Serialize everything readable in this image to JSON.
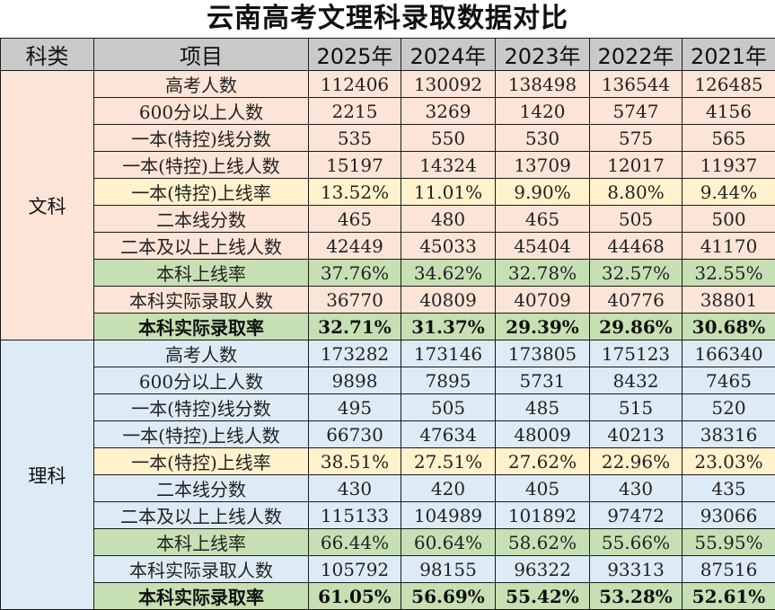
{
  "title": "云南高考文理科录取数据对比",
  "header": {
    "category": "科类",
    "item": "项目",
    "years": [
      "2025年",
      "2024年",
      "2023年",
      "2022年",
      "2021年"
    ]
  },
  "sections": [
    {
      "category": "文科",
      "rows": [
        {
          "item": "高考人数",
          "values": [
            "112406",
            "130092",
            "138498",
            "136544",
            "126485"
          ],
          "style": ""
        },
        {
          "item": "600分以上人数",
          "values": [
            "2215",
            "3269",
            "1420",
            "5747",
            "4156"
          ],
          "style": ""
        },
        {
          "item": "一本(特控)线分数",
          "values": [
            "535",
            "550",
            "530",
            "575",
            "565"
          ],
          "style": ""
        },
        {
          "item": "一本(特控)上线人数",
          "values": [
            "15197",
            "14324",
            "13709",
            "12017",
            "11937"
          ],
          "style": ""
        },
        {
          "item": "一本(特控)上线率",
          "values": [
            "13.52%",
            "11.01%",
            "9.90%",
            "8.80%",
            "9.44%"
          ],
          "style": "yellow"
        },
        {
          "item": "二本线分数",
          "values": [
            "465",
            "480",
            "465",
            "505",
            "500"
          ],
          "style": ""
        },
        {
          "item": "二本及以上上线人数",
          "values": [
            "42449",
            "45033",
            "45404",
            "44468",
            "41170"
          ],
          "style": ""
        },
        {
          "item": "本科上线率",
          "values": [
            "37.76%",
            "34.62%",
            "32.78%",
            "32.57%",
            "32.55%"
          ],
          "style": "green"
        },
        {
          "item": "本科实际录取人数",
          "values": [
            "36770",
            "40809",
            "40709",
            "40776",
            "38801"
          ],
          "style": ""
        },
        {
          "item": "本科实际录取率",
          "values": [
            "32.71%",
            "31.37%",
            "29.39%",
            "29.86%",
            "30.68%"
          ],
          "style": "green-bold"
        }
      ]
    },
    {
      "category": "理科",
      "rows": [
        {
          "item": "高考人数",
          "values": [
            "173282",
            "173146",
            "173805",
            "175123",
            "166340"
          ],
          "style": ""
        },
        {
          "item": "600分以上人数",
          "values": [
            "9898",
            "7895",
            "5731",
            "8432",
            "7465"
          ],
          "style": ""
        },
        {
          "item": "一本(特控)线分数",
          "values": [
            "495",
            "505",
            "485",
            "515",
            "520"
          ],
          "style": ""
        },
        {
          "item": "一本(特控)上线人数",
          "values": [
            "66730",
            "47634",
            "48009",
            "40213",
            "38316"
          ],
          "style": ""
        },
        {
          "item": "一本(特控)上线率",
          "values": [
            "38.51%",
            "27.51%",
            "27.62%",
            "22.96%",
            "23.03%"
          ],
          "style": "yellow"
        },
        {
          "item": "二本线分数",
          "values": [
            "430",
            "420",
            "405",
            "430",
            "435"
          ],
          "style": ""
        },
        {
          "item": "二本及以上上线人数",
          "values": [
            "115133",
            "104989",
            "101892",
            "97472",
            "93066"
          ],
          "style": ""
        },
        {
          "item": "本科上线率",
          "values": [
            "66.44%",
            "60.64%",
            "58.62%",
            "55.66%",
            "55.95%"
          ],
          "style": "green"
        },
        {
          "item": "本科实际录取人数",
          "values": [
            "105792",
            "98155",
            "96322",
            "93313",
            "87516"
          ],
          "style": ""
        },
        {
          "item": "本科实际录取率",
          "values": [
            "61.05%",
            "56.69%",
            "55.42%",
            "53.28%",
            "52.61%"
          ],
          "style": "green-bold"
        }
      ]
    }
  ],
  "colors": {
    "header_bg": "#c9c9c9",
    "wenke_bg": "#fce4d6",
    "like_bg": "#ddebf7",
    "highlight_yellow": "#fff2cc",
    "highlight_green": "#c6e0b4",
    "border": "#1a1a1a"
  }
}
